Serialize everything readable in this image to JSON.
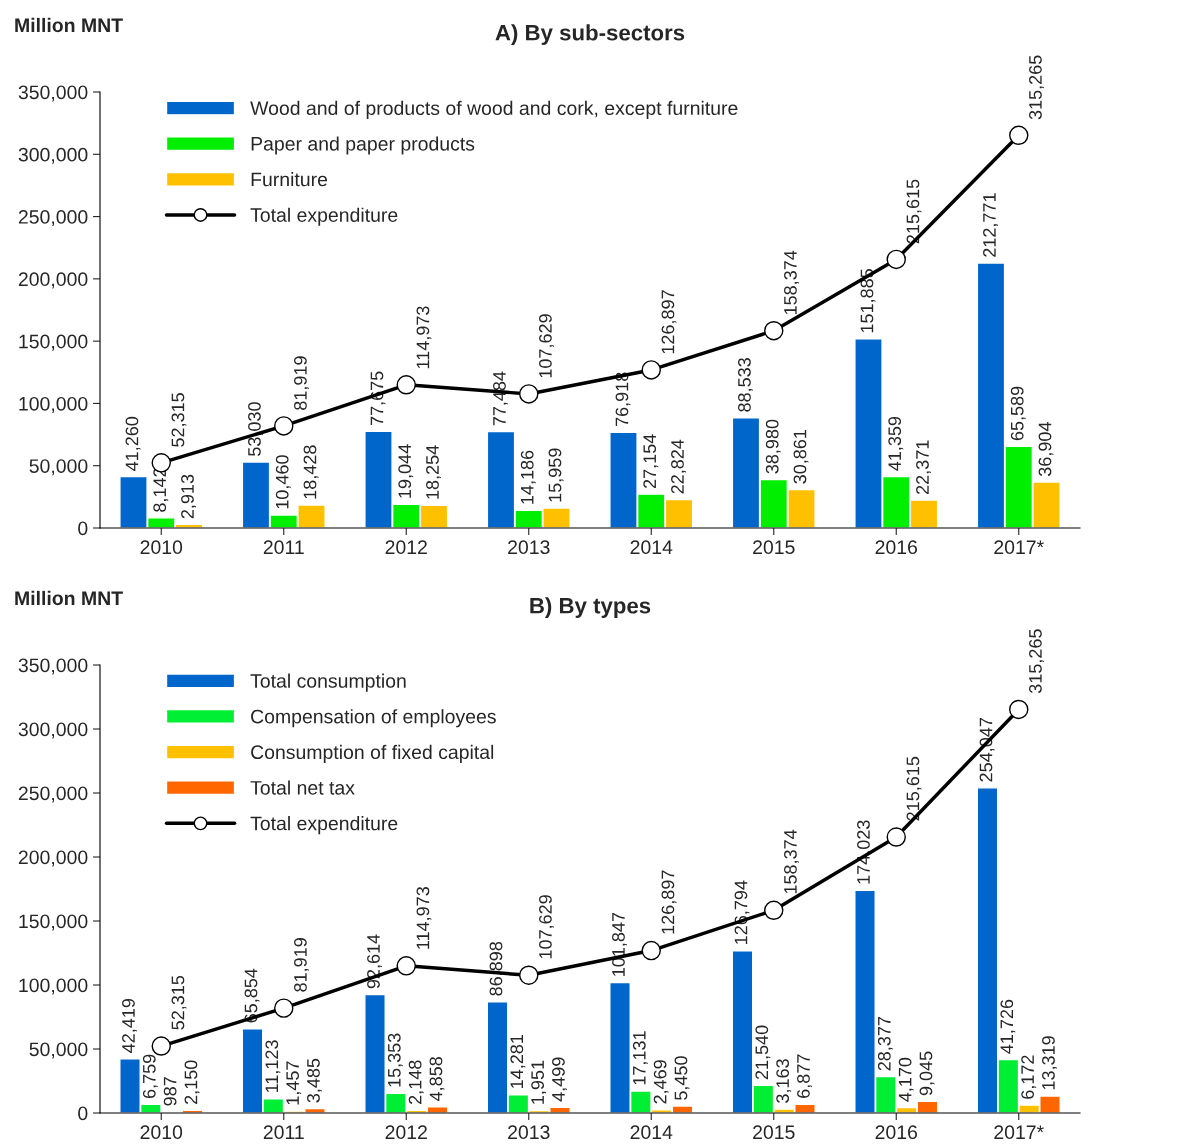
{
  "chart_data": [
    {
      "type": "bar",
      "title": "A) By sub-sectors",
      "ylabel": "Million MNT",
      "categories": [
        "2010",
        "2011",
        "2012",
        "2013",
        "2014",
        "2015",
        "2016",
        "2017*"
      ],
      "series": [
        {
          "name": "Wood and of products of wood and cork, except furniture",
          "color": "#0066cc",
          "values": [
            41260,
            53030,
            77675,
            77484,
            76918,
            88533,
            151885,
            212771
          ],
          "value_labels": [
            "41,260",
            "53,030",
            "77,675",
            "77,484",
            "76,918",
            "88,533",
            "151,885",
            "212,771"
          ]
        },
        {
          "name": "Paper and paper products",
          "color": "#00ee00",
          "values": [
            8142,
            10460,
            19044,
            14186,
            27154,
            38980,
            41359,
            65589
          ],
          "value_labels": [
            "8,142",
            "10,460",
            "19,044",
            "14,186",
            "27,154",
            "38,980",
            "41,359",
            "65,589"
          ]
        },
        {
          "name": "Furniture",
          "color": "#ffc000",
          "values": [
            2913,
            18428,
            18254,
            15959,
            22824,
            30861,
            22371,
            36904
          ],
          "value_labels": [
            "2,913",
            "18,428",
            "18,254",
            "15,959",
            "22,824",
            "30,861",
            "22,371",
            "36,904"
          ]
        },
        {
          "name": "Total expenditure",
          "type": "line",
          "color": "#000000",
          "marker": "circle",
          "line_style": "solid",
          "values": [
            52315,
            81919,
            114973,
            107629,
            126897,
            158374,
            215615,
            315265
          ],
          "value_labels": [
            "52,315",
            "81,919",
            "114,973",
            "107,629",
            "126,897",
            "158,374",
            "215,615",
            "315,265"
          ]
        }
      ],
      "ylim": [
        0,
        350000
      ],
      "yticks": [
        0,
        {
          "value": 50000,
          "label": "50,000"
        },
        {
          "value": 100000,
          "label": "100,000"
        },
        {
          "value": 150000,
          "label": "150,000"
        },
        {
          "value": 200000,
          "label": "200,000"
        },
        {
          "value": 250000,
          "label": "250,000"
        },
        {
          "value": 300000,
          "label": "300,000"
        },
        {
          "value": 350000,
          "label": "350,000"
        }
      ],
      "legend": "top left",
      "grid": false
    },
    {
      "type": "bar",
      "title": "B) By types",
      "ylabel": "Million MNT",
      "categories": [
        "2010",
        "2011",
        "2012",
        "2013",
        "2014",
        "2015",
        "2016",
        "2017*"
      ],
      "series": [
        {
          "name": "Total consumption",
          "color": "#0066cc",
          "values": [
            42419,
            65854,
            92614,
            86898,
            101847,
            126794,
            174023,
            254047
          ],
          "value_labels": [
            "42,419",
            "65,854",
            "92,614",
            "86,898",
            "101,847",
            "126,794",
            "174,023",
            "254,047"
          ]
        },
        {
          "name": "Compensation of employees",
          "color": "#00ee33",
          "values": [
            6759,
            11123,
            15353,
            14281,
            17131,
            21540,
            28377,
            41726
          ],
          "value_labels": [
            "6,759",
            "11,123",
            "15,353",
            "14,281",
            "17,131",
            "21,540",
            "28,377",
            "41,726"
          ]
        },
        {
          "name": "Consumption of fixed capital",
          "color": "#ffc000",
          "values": [
            987,
            1457,
            2148,
            1951,
            2469,
            3163,
            4170,
            6172
          ],
          "value_labels": [
            "987",
            "1,457",
            "2,148",
            "1,951",
            "2,469",
            "3,163",
            "4,170",
            "6,172"
          ]
        },
        {
          "name": "Total net tax",
          "color": "#ff6600",
          "values": [
            2150,
            3485,
            4858,
            4499,
            5450,
            6877,
            9045,
            13319
          ],
          "value_labels": [
            "2,150",
            "3,485",
            "4,858",
            "4,499",
            "5,450",
            "6,877",
            "9,045",
            "13,319"
          ]
        },
        {
          "name": "Total expenditure",
          "type": "line",
          "color": "#000000",
          "marker": "circle",
          "line_style": "solid",
          "values": [
            52315,
            81919,
            114973,
            107629,
            126897,
            158374,
            215615,
            315265
          ],
          "value_labels": [
            "52,315",
            "81,919",
            "114,973",
            "107,629",
            "126,897",
            "158,374",
            "215,615",
            "315,265"
          ]
        }
      ],
      "ylim": [
        0,
        350000
      ],
      "yticks": [
        0,
        {
          "value": 50000,
          "label": "50,000"
        },
        {
          "value": 100000,
          "label": "100,000"
        },
        {
          "value": 150000,
          "label": "150,000"
        },
        {
          "value": 200000,
          "label": "200,000"
        },
        {
          "value": 250000,
          "label": "250,000"
        },
        {
          "value": 300000,
          "label": "300,000"
        },
        {
          "value": 350000,
          "label": "350,000"
        }
      ],
      "legend": "top left",
      "grid": false
    }
  ]
}
